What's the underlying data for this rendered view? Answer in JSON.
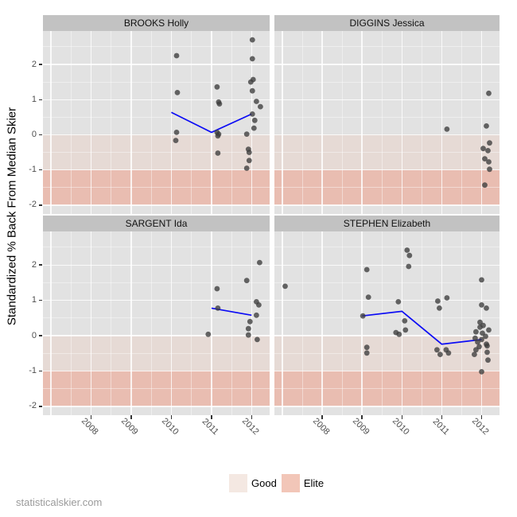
{
  "watermark": "statisticalskier.com",
  "y_axis_title": "Standardized % Back From Median Skier",
  "legend": {
    "items": [
      {
        "label": "Good",
        "color": "#f4e8e2"
      },
      {
        "label": "Elite",
        "color": "#f2c6b8"
      }
    ]
  },
  "colors": {
    "strip_bg": "#c2c2c2",
    "panel_bg": "#e2e2e2",
    "band_good": "#e6dad5",
    "band_elite": "#e9bdb1",
    "point": "#3c3c3c",
    "trend_line": "#0b0bf5",
    "tick_label": "#4d4d4d"
  },
  "chart_data": {
    "type": "scatter",
    "title": "",
    "xlabel": "",
    "ylabel": "Standardized % Back From Median Skier",
    "x_ticks": [
      "2008",
      "2009",
      "2010",
      "2011",
      "2012"
    ],
    "y_ticks": [
      "2",
      "1",
      "0",
      "-1",
      "-2"
    ],
    "xlim": [
      2006.8,
      2012.45
    ],
    "ylim": [
      -2.25,
      2.95
    ],
    "grid": "major+minor, white on gray",
    "legend_position": "bottom",
    "bands": [
      {
        "name": "Good",
        "from": -1,
        "to": 0
      },
      {
        "name": "Elite",
        "from": -2,
        "to": -1
      }
    ],
    "facets": [
      {
        "title": "BROOKS Holly",
        "row": 0,
        "col": 0,
        "points": [
          [
            2010.13,
            2.25
          ],
          [
            2010.15,
            1.2
          ],
          [
            2010.13,
            0.07
          ],
          [
            2010.11,
            -0.16
          ],
          [
            2011.14,
            1.36
          ],
          [
            2011.18,
            0.93
          ],
          [
            2011.2,
            0.88
          ],
          [
            2011.14,
            0.07
          ],
          [
            2011.18,
            0.02
          ],
          [
            2011.16,
            -0.03
          ],
          [
            2011.16,
            -0.52
          ],
          [
            2012.02,
            2.7
          ],
          [
            2012.02,
            2.16
          ],
          [
            2012.04,
            1.57
          ],
          [
            2011.98,
            1.5
          ],
          [
            2012.02,
            1.25
          ],
          [
            2012.12,
            0.95
          ],
          [
            2012.22,
            0.8
          ],
          [
            2012.02,
            0.59
          ],
          [
            2012.08,
            0.41
          ],
          [
            2012.06,
            0.19
          ],
          [
            2011.88,
            0.02
          ],
          [
            2011.92,
            -0.41
          ],
          [
            2011.94,
            -0.5
          ],
          [
            2011.94,
            -0.73
          ],
          [
            2011.88,
            -0.95
          ]
        ],
        "trend": [
          [
            2010,
            0.64
          ],
          [
            2011,
            0.07
          ],
          [
            2012,
            0.59
          ]
        ]
      },
      {
        "title": "DIGGINS Jessica",
        "row": 0,
        "col": 1,
        "points": [
          [
            2011.13,
            0.16
          ],
          [
            2012.18,
            1.18
          ],
          [
            2012.12,
            0.25
          ],
          [
            2012.2,
            -0.23
          ],
          [
            2012.04,
            -0.39
          ],
          [
            2012.16,
            -0.45
          ],
          [
            2012.08,
            -0.68
          ],
          [
            2012.18,
            -0.77
          ],
          [
            2012.2,
            -0.98
          ],
          [
            2012.08,
            -1.43
          ]
        ],
        "trend": []
      },
      {
        "title": "SARGENT Ida",
        "row": 1,
        "col": 0,
        "points": [
          [
            2010.92,
            0.04
          ],
          [
            2011.14,
            1.33
          ],
          [
            2011.16,
            0.78
          ],
          [
            2011.88,
            1.56
          ],
          [
            2012.2,
            2.07
          ],
          [
            2012.12,
            0.96
          ],
          [
            2012.18,
            0.87
          ],
          [
            2012.12,
            0.58
          ],
          [
            2011.96,
            0.4
          ],
          [
            2011.92,
            0.2
          ],
          [
            2011.92,
            0.02
          ],
          [
            2012.14,
            -0.11
          ]
        ],
        "trend": [
          [
            2011,
            0.78
          ],
          [
            2012,
            0.58
          ]
        ]
      },
      {
        "title": "STEPHEN Elizabeth",
        "row": 1,
        "col": 1,
        "points": [
          [
            2007.07,
            1.4
          ],
          [
            2009.02,
            0.56
          ],
          [
            2009.12,
            1.87
          ],
          [
            2009.16,
            1.09
          ],
          [
            2009.12,
            -0.33
          ],
          [
            2009.12,
            -0.49
          ],
          [
            2009.91,
            0.96
          ],
          [
            2009.85,
            0.09
          ],
          [
            2009.93,
            0.04
          ],
          [
            2010.07,
            0.42
          ],
          [
            2010.09,
            0.16
          ],
          [
            2010.13,
            2.42
          ],
          [
            2010.19,
            2.27
          ],
          [
            2010.17,
            1.96
          ],
          [
            2010.9,
            0.98
          ],
          [
            2010.94,
            0.78
          ],
          [
            2010.88,
            -0.4
          ],
          [
            2010.96,
            -0.53
          ],
          [
            2011.13,
            1.07
          ],
          [
            2011.11,
            -0.4
          ],
          [
            2011.17,
            -0.49
          ],
          [
            2012.0,
            1.58
          ],
          [
            2012.0,
            0.87
          ],
          [
            2012.12,
            0.78
          ],
          [
            2011.96,
            0.38
          ],
          [
            2012.04,
            0.29
          ],
          [
            2011.96,
            0.24
          ],
          [
            2012.18,
            0.16
          ],
          [
            2011.86,
            0.11
          ],
          [
            2012.02,
            0.07
          ],
          [
            2012.1,
            -0.02
          ],
          [
            2011.84,
            -0.07
          ],
          [
            2012.0,
            -0.11
          ],
          [
            2011.9,
            -0.18
          ],
          [
            2012.12,
            -0.24
          ],
          [
            2012.14,
            -0.29
          ],
          [
            2011.94,
            -0.31
          ],
          [
            2011.86,
            -0.4
          ],
          [
            2012.14,
            -0.47
          ],
          [
            2011.82,
            -0.53
          ],
          [
            2012.16,
            -0.69
          ],
          [
            2012.0,
            -1.02
          ]
        ],
        "trend": [
          [
            2009,
            0.56
          ],
          [
            2010,
            0.69
          ],
          [
            2011,
            -0.24
          ],
          [
            2012,
            -0.11
          ]
        ]
      }
    ]
  }
}
